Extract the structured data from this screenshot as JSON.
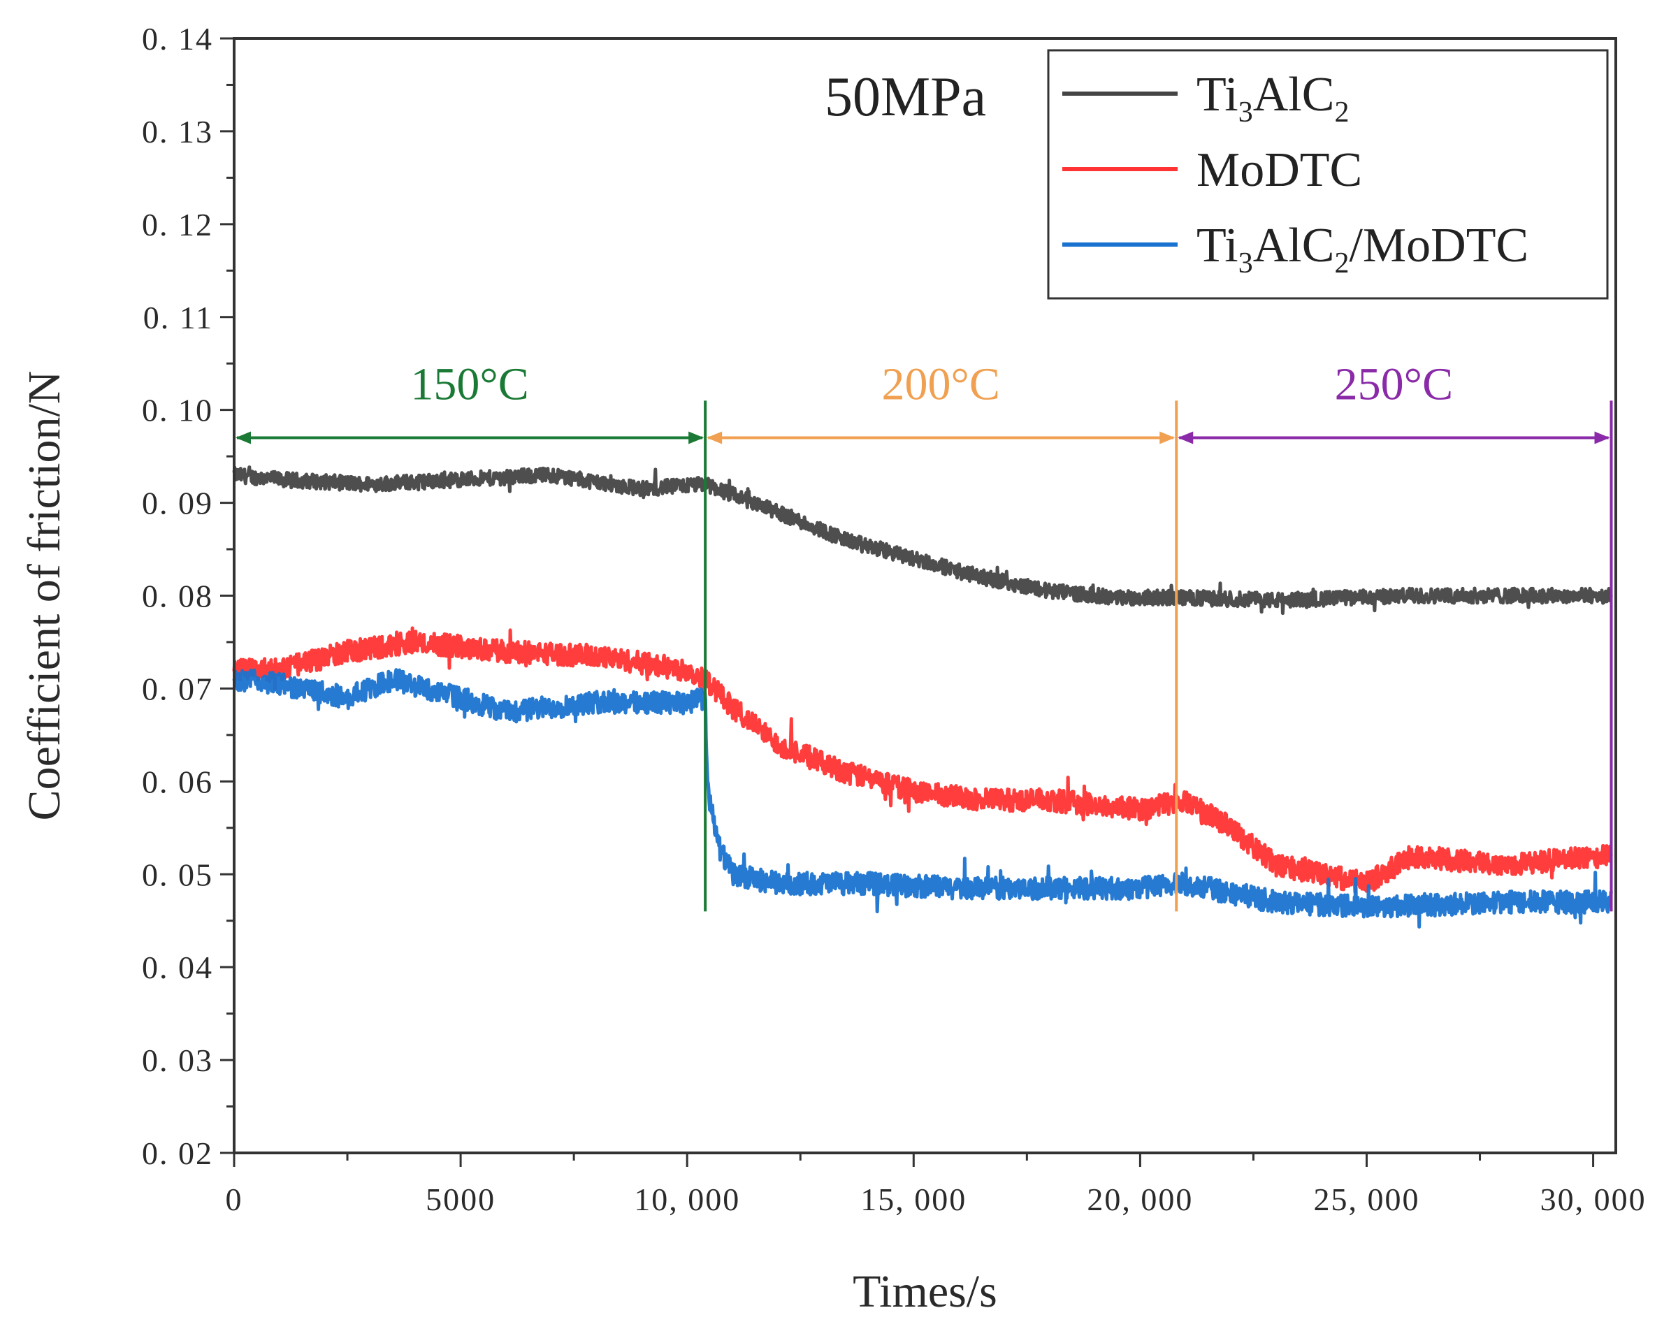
{
  "chart_data": {
    "type": "line",
    "title": "",
    "xlabel": "Times/s",
    "ylabel": "Coefficient of friction/N",
    "xlim": [
      0,
      30500
    ],
    "ylim": [
      0.02,
      0.14
    ],
    "x_ticks": [
      0,
      5000,
      10000,
      15000,
      20000,
      25000,
      30000
    ],
    "x_tick_labels": [
      "0",
      "5000",
      "10, 000",
      "15, 000",
      "20, 000",
      "25, 000",
      "30, 000"
    ],
    "y_ticks": [
      0.02,
      0.03,
      0.04,
      0.05,
      0.06,
      0.07,
      0.08,
      0.09,
      0.1,
      0.11,
      0.12,
      0.13,
      0.14
    ],
    "y_tick_labels": [
      "0. 02",
      "0. 03",
      "0. 04",
      "0. 05",
      "0. 06",
      "0. 07",
      "0. 08",
      "0. 09",
      "0. 10",
      "0. 11",
      "0. 12",
      "0. 13",
      "0. 14"
    ],
    "grid": false,
    "legend_position": "top-right",
    "annotation": "50MPa",
    "regions": [
      {
        "label": "150°C",
        "x_start": 0,
        "x_end": 10400,
        "color": "#1a7a35"
      },
      {
        "label": "200°C",
        "x_start": 10400,
        "x_end": 20800,
        "color": "#f0a050"
      },
      {
        "label": "250°C",
        "x_start": 20800,
        "x_end": 30400,
        "color": "#8a2aa8"
      }
    ],
    "region_arrow_y": 0.097,
    "series": [
      {
        "name": "Ti3AlC2",
        "label_main": "Ti",
        "label_sub1": "3",
        "label_mid": "AlC",
        "label_sub2": "2",
        "label_tail": "",
        "color": "#444444",
        "noise": 0.0008,
        "x": [
          0,
          1000,
          3000,
          5000,
          7000,
          9000,
          10400,
          12000,
          13500,
          15000,
          16500,
          18000,
          19500,
          20800,
          23000,
          26000,
          28000,
          30400
        ],
        "y": [
          0.093,
          0.0925,
          0.092,
          0.0925,
          0.093,
          0.0915,
          0.092,
          0.089,
          0.086,
          0.084,
          0.082,
          0.0805,
          0.0798,
          0.0798,
          0.0795,
          0.08,
          0.08,
          0.08
        ]
      },
      {
        "name": "MoDTC",
        "label_main": "MoDTC",
        "label_sub1": "",
        "label_mid": "",
        "label_sub2": "",
        "label_tail": "",
        "color": "#ff3333",
        "noise": 0.0012,
        "x": [
          0,
          1000,
          2500,
          4000,
          6000,
          8000,
          10000,
          10400,
          11000,
          12000,
          13500,
          15000,
          16500,
          18000,
          20000,
          21000,
          22000,
          23000,
          25000,
          26000,
          28000,
          30400
        ],
        "y": [
          0.072,
          0.072,
          0.074,
          0.075,
          0.074,
          0.0735,
          0.072,
          0.071,
          0.068,
          0.064,
          0.061,
          0.059,
          0.058,
          0.058,
          0.057,
          0.058,
          0.055,
          0.051,
          0.049,
          0.052,
          0.051,
          0.052
        ]
      },
      {
        "name": "Ti3AlC2/MoDTC",
        "label_main": "Ti",
        "label_sub1": "3",
        "label_mid": "AlC",
        "label_sub2": "2",
        "label_tail": "/MoDTC",
        "color": "#1a73d0",
        "noise": 0.0012,
        "x": [
          0,
          1000,
          2500,
          3500,
          5000,
          6000,
          8000,
          10000,
          10400,
          10450,
          10700,
          11000,
          12000,
          14000,
          16000,
          18000,
          20000,
          21000,
          23000,
          25000,
          28000,
          30400
        ],
        "y": [
          0.071,
          0.0705,
          0.069,
          0.071,
          0.069,
          0.0675,
          0.0685,
          0.0685,
          0.069,
          0.059,
          0.053,
          0.05,
          0.049,
          0.049,
          0.0485,
          0.0485,
          0.0485,
          0.049,
          0.047,
          0.0465,
          0.047,
          0.047
        ]
      }
    ]
  }
}
